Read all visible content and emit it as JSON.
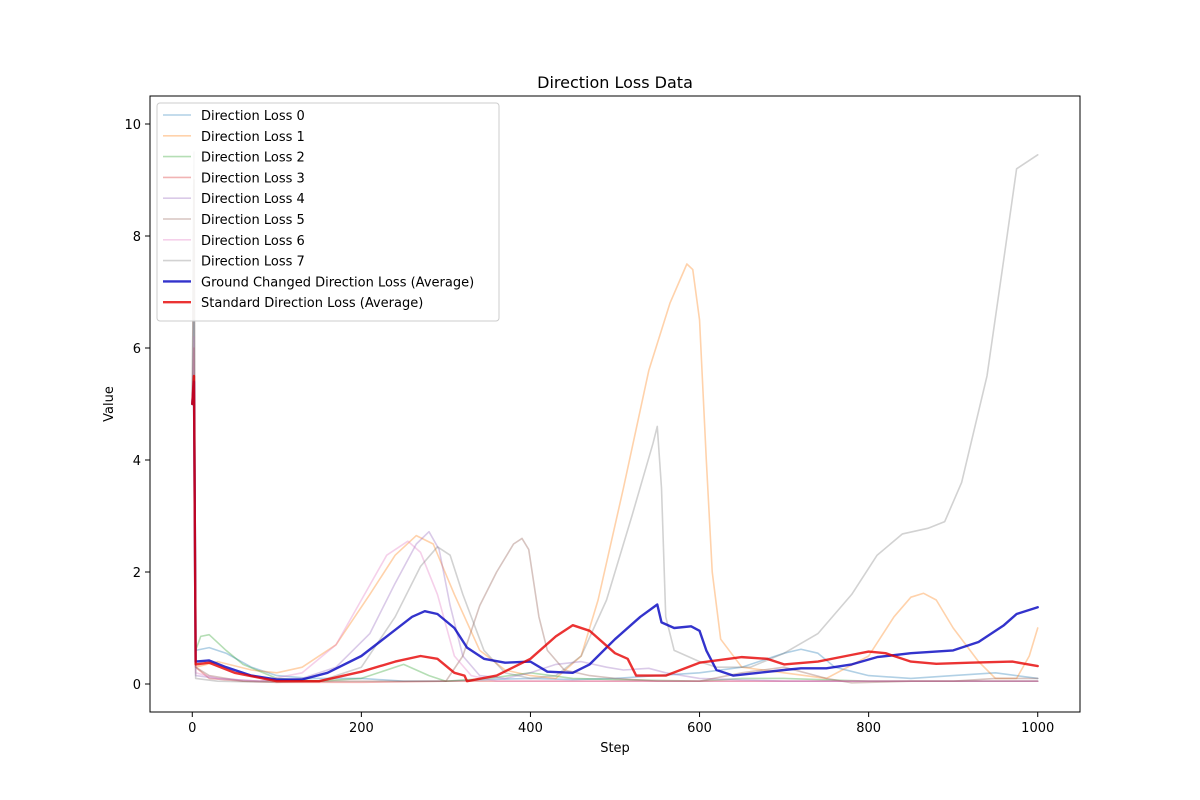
{
  "chart_data": {
    "type": "line",
    "title": "Direction Loss Data",
    "xlabel": "Step",
    "ylabel": "Value",
    "xlim": [
      -50,
      1050
    ],
    "ylim": [
      -0.5,
      10.5
    ],
    "xticks": [
      0,
      200,
      400,
      600,
      800,
      1000
    ],
    "yticks": [
      0,
      2,
      4,
      6,
      8,
      10
    ],
    "grid": false,
    "legend_position": "top-left",
    "series": [
      {
        "name": "Direction Loss 0",
        "color": "#1f77b4",
        "alpha": 0.35,
        "width": 1.6,
        "points": [
          [
            0,
            5.0
          ],
          [
            2,
            6.5
          ],
          [
            4,
            0.6
          ],
          [
            20,
            0.65
          ],
          [
            40,
            0.55
          ],
          [
            70,
            0.3
          ],
          [
            100,
            0.15
          ],
          [
            140,
            0.1
          ],
          [
            200,
            0.1
          ],
          [
            250,
            0.05
          ],
          [
            300,
            0.05
          ],
          [
            350,
            0.08
          ],
          [
            400,
            0.1
          ],
          [
            450,
            0.08
          ],
          [
            500,
            0.1
          ],
          [
            550,
            0.15
          ],
          [
            600,
            0.2
          ],
          [
            650,
            0.3
          ],
          [
            700,
            0.55
          ],
          [
            720,
            0.62
          ],
          [
            740,
            0.55
          ],
          [
            760,
            0.3
          ],
          [
            800,
            0.15
          ],
          [
            850,
            0.1
          ],
          [
            900,
            0.15
          ],
          [
            950,
            0.2
          ],
          [
            1000,
            0.1
          ]
        ]
      },
      {
        "name": "Direction Loss 1",
        "color": "#ff7f0e",
        "alpha": 0.35,
        "width": 1.6,
        "points": [
          [
            0,
            5.0
          ],
          [
            2,
            6.0
          ],
          [
            4,
            0.3
          ],
          [
            30,
            0.4
          ],
          [
            70,
            0.25
          ],
          [
            100,
            0.2
          ],
          [
            130,
            0.3
          ],
          [
            170,
            0.7
          ],
          [
            210,
            1.6
          ],
          [
            240,
            2.3
          ],
          [
            265,
            2.65
          ],
          [
            285,
            2.5
          ],
          [
            310,
            1.6
          ],
          [
            340,
            0.6
          ],
          [
            370,
            0.25
          ],
          [
            400,
            0.15
          ],
          [
            430,
            0.1
          ],
          [
            460,
            0.5
          ],
          [
            480,
            1.5
          ],
          [
            510,
            3.5
          ],
          [
            540,
            5.6
          ],
          [
            565,
            6.8
          ],
          [
            585,
            7.5
          ],
          [
            592,
            7.4
          ],
          [
            600,
            6.5
          ],
          [
            608,
            4.0
          ],
          [
            615,
            2.0
          ],
          [
            625,
            0.8
          ],
          [
            650,
            0.3
          ],
          [
            700,
            0.2
          ],
          [
            750,
            0.1
          ],
          [
            800,
            0.5
          ],
          [
            830,
            1.2
          ],
          [
            850,
            1.55
          ],
          [
            865,
            1.62
          ],
          [
            880,
            1.5
          ],
          [
            900,
            1.0
          ],
          [
            930,
            0.4
          ],
          [
            950,
            0.1
          ],
          [
            975,
            0.1
          ],
          [
            990,
            0.5
          ],
          [
            1000,
            1.0
          ]
        ]
      },
      {
        "name": "Direction Loss 2",
        "color": "#2ca02c",
        "alpha": 0.35,
        "width": 1.6,
        "points": [
          [
            0,
            5.0
          ],
          [
            2,
            5.5
          ],
          [
            4,
            0.6
          ],
          [
            10,
            0.85
          ],
          [
            20,
            0.88
          ],
          [
            40,
            0.6
          ],
          [
            60,
            0.35
          ],
          [
            100,
            0.1
          ],
          [
            150,
            0.05
          ],
          [
            200,
            0.1
          ],
          [
            250,
            0.35
          ],
          [
            280,
            0.15
          ],
          [
            300,
            0.05
          ],
          [
            350,
            0.1
          ],
          [
            400,
            0.2
          ],
          [
            450,
            0.1
          ],
          [
            500,
            0.08
          ],
          [
            600,
            0.05
          ],
          [
            650,
            0.1
          ],
          [
            700,
            0.1
          ],
          [
            800,
            0.05
          ],
          [
            900,
            0.05
          ],
          [
            1000,
            0.05
          ]
        ]
      },
      {
        "name": "Direction Loss 3",
        "color": "#d62728",
        "alpha": 0.35,
        "width": 1.6,
        "points": [
          [
            0,
            5.0
          ],
          [
            2,
            5.2
          ],
          [
            4,
            0.3
          ],
          [
            20,
            0.1
          ],
          [
            60,
            0.05
          ],
          [
            100,
            0.03
          ],
          [
            200,
            0.03
          ],
          [
            300,
            0.05
          ],
          [
            400,
            0.05
          ],
          [
            500,
            0.05
          ],
          [
            600,
            0.05
          ],
          [
            700,
            0.05
          ],
          [
            800,
            0.05
          ],
          [
            900,
            0.05
          ],
          [
            1000,
            0.05
          ]
        ]
      },
      {
        "name": "Direction Loss 4",
        "color": "#9467bd",
        "alpha": 0.35,
        "width": 1.6,
        "points": [
          [
            0,
            5.0
          ],
          [
            2,
            6.0
          ],
          [
            4,
            0.15
          ],
          [
            30,
            0.1
          ],
          [
            80,
            0.05
          ],
          [
            130,
            0.1
          ],
          [
            170,
            0.3
          ],
          [
            210,
            0.9
          ],
          [
            240,
            1.8
          ],
          [
            265,
            2.5
          ],
          [
            280,
            2.72
          ],
          [
            292,
            2.4
          ],
          [
            305,
            1.4
          ],
          [
            320,
            0.5
          ],
          [
            340,
            0.15
          ],
          [
            370,
            0.1
          ],
          [
            400,
            0.2
          ],
          [
            430,
            0.35
          ],
          [
            460,
            0.4
          ],
          [
            490,
            0.3
          ],
          [
            510,
            0.25
          ],
          [
            540,
            0.28
          ],
          [
            560,
            0.2
          ],
          [
            600,
            0.1
          ],
          [
            700,
            0.05
          ],
          [
            800,
            0.05
          ],
          [
            900,
            0.05
          ],
          [
            1000,
            0.05
          ]
        ]
      },
      {
        "name": "Direction Loss 5",
        "color": "#8c564b",
        "alpha": 0.35,
        "width": 1.6,
        "points": [
          [
            0,
            5.0
          ],
          [
            2,
            9.0
          ],
          [
            4,
            0.3
          ],
          [
            20,
            0.15
          ],
          [
            60,
            0.05
          ],
          [
            150,
            0.05
          ],
          [
            250,
            0.05
          ],
          [
            300,
            0.05
          ],
          [
            320,
            0.5
          ],
          [
            340,
            1.4
          ],
          [
            360,
            2.0
          ],
          [
            380,
            2.5
          ],
          [
            390,
            2.6
          ],
          [
            398,
            2.4
          ],
          [
            410,
            1.2
          ],
          [
            420,
            0.6
          ],
          [
            440,
            0.25
          ],
          [
            470,
            0.15
          ],
          [
            500,
            0.1
          ],
          [
            550,
            0.05
          ],
          [
            600,
            0.05
          ],
          [
            650,
            0.2
          ],
          [
            700,
            0.3
          ],
          [
            750,
            0.1
          ],
          [
            780,
            0.02
          ],
          [
            850,
            0.05
          ],
          [
            900,
            0.05
          ],
          [
            950,
            0.1
          ],
          [
            1000,
            0.1
          ]
        ]
      },
      {
        "name": "Direction Loss 6",
        "color": "#e377c2",
        "alpha": 0.35,
        "width": 1.6,
        "points": [
          [
            0,
            5.0
          ],
          [
            2,
            6.2
          ],
          [
            4,
            0.2
          ],
          [
            30,
            0.1
          ],
          [
            80,
            0.05
          ],
          [
            130,
            0.2
          ],
          [
            170,
            0.7
          ],
          [
            200,
            1.5
          ],
          [
            230,
            2.3
          ],
          [
            255,
            2.55
          ],
          [
            270,
            2.35
          ],
          [
            290,
            1.6
          ],
          [
            310,
            0.5
          ],
          [
            330,
            0.15
          ],
          [
            360,
            0.05
          ],
          [
            400,
            0.05
          ],
          [
            500,
            0.05
          ],
          [
            600,
            0.05
          ],
          [
            700,
            0.05
          ],
          [
            800,
            0.05
          ],
          [
            900,
            0.05
          ],
          [
            1000,
            0.05
          ]
        ]
      },
      {
        "name": "Direction Loss 7",
        "color": "#7f7f7f",
        "alpha": 0.35,
        "width": 1.6,
        "points": [
          [
            0,
            5.0
          ],
          [
            2,
            9.5
          ],
          [
            4,
            0.1
          ],
          [
            30,
            0.05
          ],
          [
            100,
            0.03
          ],
          [
            150,
            0.05
          ],
          [
            200,
            0.3
          ],
          [
            240,
            1.2
          ],
          [
            270,
            2.1
          ],
          [
            290,
            2.45
          ],
          [
            305,
            2.3
          ],
          [
            320,
            1.6
          ],
          [
            345,
            0.6
          ],
          [
            370,
            0.2
          ],
          [
            400,
            0.1
          ],
          [
            430,
            0.15
          ],
          [
            460,
            0.5
          ],
          [
            490,
            1.5
          ],
          [
            520,
            3.0
          ],
          [
            545,
            4.3
          ],
          [
            550,
            4.6
          ],
          [
            555,
            3.5
          ],
          [
            560,
            1.2
          ],
          [
            570,
            0.6
          ],
          [
            600,
            0.4
          ],
          [
            620,
            0.3
          ],
          [
            660,
            0.3
          ],
          [
            700,
            0.55
          ],
          [
            740,
            0.9
          ],
          [
            780,
            1.6
          ],
          [
            810,
            2.3
          ],
          [
            840,
            2.68
          ],
          [
            870,
            2.78
          ],
          [
            890,
            2.9
          ],
          [
            910,
            3.6
          ],
          [
            940,
            5.5
          ],
          [
            960,
            7.6
          ],
          [
            975,
            9.2
          ],
          [
            1000,
            9.45
          ]
        ]
      },
      {
        "name": "Ground Changed Direction Loss (Average)",
        "color": "#0000bf",
        "alpha": 0.8,
        "width": 2.4,
        "points": [
          [
            0,
            5.0
          ],
          [
            2,
            5.4
          ],
          [
            4,
            0.4
          ],
          [
            20,
            0.42
          ],
          [
            40,
            0.3
          ],
          [
            70,
            0.15
          ],
          [
            100,
            0.08
          ],
          [
            130,
            0.08
          ],
          [
            160,
            0.2
          ],
          [
            200,
            0.5
          ],
          [
            230,
            0.85
          ],
          [
            260,
            1.2
          ],
          [
            275,
            1.3
          ],
          [
            290,
            1.25
          ],
          [
            310,
            1.0
          ],
          [
            325,
            0.65
          ],
          [
            345,
            0.45
          ],
          [
            370,
            0.38
          ],
          [
            400,
            0.4
          ],
          [
            420,
            0.22
          ],
          [
            450,
            0.2
          ],
          [
            470,
            0.35
          ],
          [
            500,
            0.8
          ],
          [
            530,
            1.2
          ],
          [
            550,
            1.42
          ],
          [
            555,
            1.1
          ],
          [
            570,
            1.0
          ],
          [
            590,
            1.03
          ],
          [
            600,
            0.95
          ],
          [
            608,
            0.6
          ],
          [
            620,
            0.25
          ],
          [
            640,
            0.15
          ],
          [
            670,
            0.2
          ],
          [
            700,
            0.25
          ],
          [
            720,
            0.28
          ],
          [
            750,
            0.28
          ],
          [
            780,
            0.35
          ],
          [
            810,
            0.48
          ],
          [
            850,
            0.55
          ],
          [
            900,
            0.6
          ],
          [
            930,
            0.75
          ],
          [
            960,
            1.05
          ],
          [
            975,
            1.25
          ],
          [
            1000,
            1.37
          ]
        ]
      },
      {
        "name": "Standard Direction Loss (Average)",
        "color": "#e60000",
        "alpha": 0.8,
        "width": 2.4,
        "points": [
          [
            0,
            5.0
          ],
          [
            2,
            5.5
          ],
          [
            4,
            0.35
          ],
          [
            20,
            0.38
          ],
          [
            50,
            0.2
          ],
          [
            100,
            0.05
          ],
          [
            150,
            0.05
          ],
          [
            200,
            0.22
          ],
          [
            240,
            0.4
          ],
          [
            270,
            0.5
          ],
          [
            290,
            0.45
          ],
          [
            310,
            0.2
          ],
          [
            322,
            0.15
          ],
          [
            325,
            0.05
          ],
          [
            360,
            0.15
          ],
          [
            400,
            0.45
          ],
          [
            430,
            0.85
          ],
          [
            450,
            1.05
          ],
          [
            470,
            0.95
          ],
          [
            500,
            0.55
          ],
          [
            515,
            0.45
          ],
          [
            525,
            0.15
          ],
          [
            560,
            0.15
          ],
          [
            600,
            0.38
          ],
          [
            620,
            0.42
          ],
          [
            650,
            0.48
          ],
          [
            680,
            0.45
          ],
          [
            700,
            0.35
          ],
          [
            740,
            0.4
          ],
          [
            780,
            0.52
          ],
          [
            800,
            0.58
          ],
          [
            820,
            0.55
          ],
          [
            850,
            0.4
          ],
          [
            880,
            0.36
          ],
          [
            920,
            0.38
          ],
          [
            970,
            0.4
          ],
          [
            1000,
            0.32
          ]
        ]
      }
    ]
  }
}
